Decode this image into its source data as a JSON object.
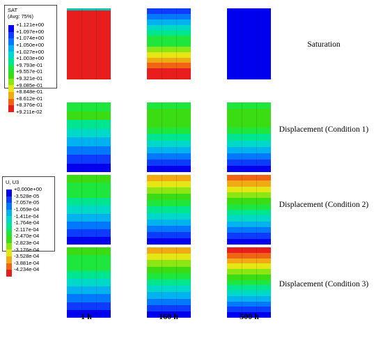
{
  "legends": {
    "sat": {
      "title_line1": "SAT",
      "title_line2": "(Avg: 75%)",
      "entries": [
        {
          "value": "+1.121e+00",
          "color": "#0000ee"
        },
        {
          "value": "+1.097e+00",
          "color": "#0d3bff"
        },
        {
          "value": "+1.074e+00",
          "color": "#0078ff"
        },
        {
          "value": "+1.050e+00",
          "color": "#00b2f0"
        },
        {
          "value": "+1.027e+00",
          "color": "#00d8c8"
        },
        {
          "value": "+1.003e+00",
          "color": "#00e690"
        },
        {
          "value": "+9.793e-01",
          "color": "#1ee63c"
        },
        {
          "value": "+9.557e-01",
          "color": "#3cdc14"
        },
        {
          "value": "+9.321e-01",
          "color": "#8ce614"
        },
        {
          "value": "+9.085e-01",
          "color": "#e6e614"
        },
        {
          "value": "+8.848e-01",
          "color": "#f0aa14"
        },
        {
          "value": "+8.612e-01",
          "color": "#f06414"
        },
        {
          "value": "+8.376e-01",
          "color": "#e81e1e"
        },
        {
          "value": "+9.211e-02",
          "color": ""
        }
      ]
    },
    "u3": {
      "title_line1": "U, U3",
      "entries": [
        {
          "value": "+0.000e+00",
          "color": "#0000ee"
        },
        {
          "value": "-3.528e-05",
          "color": "#0d3bff"
        },
        {
          "value": "-7.057e-05",
          "color": "#0078ff"
        },
        {
          "value": "-1.059e-04",
          "color": "#00b2f0"
        },
        {
          "value": "-1.411e-04",
          "color": "#00d8c8"
        },
        {
          "value": "-1.764e-04",
          "color": "#00e690"
        },
        {
          "value": "-2.117e-04",
          "color": "#1ee63c"
        },
        {
          "value": "-2.470e-04",
          "color": "#3cdc14"
        },
        {
          "value": "-2.823e-04",
          "color": "#8ce614"
        },
        {
          "value": "-3.176e-04",
          "color": "#e6e614"
        },
        {
          "value": "-3.528e-04",
          "color": "#f0aa14"
        },
        {
          "value": "-3.881e-04",
          "color": "#f06414"
        },
        {
          "value": "-4.234e-04",
          "color": "#e81e1e"
        }
      ]
    }
  },
  "row_labels": [
    "Saturation",
    "Displacement (Condition 1)",
    "Displacement (Condition 2)",
    "Displacement (Condition 3)"
  ],
  "time_labels": [
    "1 h",
    "160 h",
    "500 h"
  ],
  "columns": {
    "r0c0": [
      "#00c8b4",
      "#e81e1e",
      "#e81e1e",
      "#e81e1e",
      "#e81e1e",
      "#e81e1e",
      "#e81e1e",
      "#e81e1e",
      "#e81e1e",
      "#e81e1e",
      "#e81e1e",
      "#e81e1e",
      "#e81e1e",
      "#e81e1e",
      "#e81e1e",
      "#e81e1e",
      "#e81e1e",
      "#e81e1e",
      "#e81e1e",
      "#e81e1e",
      "#e81e1e",
      "#e81e1e",
      "#e81e1e",
      "#e81e1e",
      "#e81e1e",
      "#e81e1e",
      "#e81e1e",
      "#e81e1e",
      "#e81e1e",
      "#e81e1e"
    ],
    "r0c1": [
      "#0d3bff",
      "#0078ff",
      "#00b2f0",
      "#00d8c8",
      "#00e690",
      "#1ee63c",
      "#1ee63c",
      "#8ce614",
      "#e6e614",
      "#f0aa14",
      "#f06414",
      "#e81e1e",
      "#e81e1e"
    ],
    "r0c2": [
      "#0000ee",
      "#0000ee",
      "#0000ee",
      "#0000ee",
      "#0000ee",
      "#0000ee",
      "#0000ee",
      "#0000ee"
    ],
    "r1c0": [
      "#1ee63c",
      "#3cdc14",
      "#00e690",
      "#00d8c8",
      "#00b2f0",
      "#0078ff",
      "#0d3bff",
      "#0000ee"
    ],
    "r1c1": [
      "#1ee63c",
      "#3cdc14",
      "#3cdc14",
      "#3cdc14",
      "#1ee63c",
      "#00e690",
      "#00d8c8",
      "#00b2f0",
      "#0078ff",
      "#0d3bff",
      "#0000ee"
    ],
    "r1c2": [
      "#1ee63c",
      "#3cdc14",
      "#3cdc14",
      "#3cdc14",
      "#1ee63c",
      "#00e690",
      "#00d8c8",
      "#00b2f0",
      "#0078ff",
      "#0d3bff",
      "#0000ee"
    ],
    "r2c0": [
      "#3cdc14",
      "#1ee63c",
      "#1ee63c",
      "#00e690",
      "#00d8c8",
      "#00b2f0",
      "#0078ff",
      "#0d3bff",
      "#0000ee"
    ],
    "r2c1": [
      "#f0aa14",
      "#e6e614",
      "#8ce614",
      "#3cdc14",
      "#1ee63c",
      "#00e690",
      "#00d8c8",
      "#00b2f0",
      "#0078ff",
      "#0d3bff",
      "#0000ee"
    ],
    "r2c2": [
      "#f06414",
      "#f0aa14",
      "#e6e614",
      "#8ce614",
      "#3cdc14",
      "#1ee63c",
      "#00e690",
      "#00d8c8",
      "#00b2f0",
      "#0078ff",
      "#0d3bff",
      "#0000ee"
    ],
    "r3c0": [
      "#3cdc14",
      "#1ee63c",
      "#1ee63c",
      "#00e690",
      "#00d8c8",
      "#00b2f0",
      "#0078ff",
      "#0d3bff",
      "#0000ee"
    ],
    "r3c1": [
      "#f0aa14",
      "#e6e614",
      "#8ce614",
      "#3cdc14",
      "#1ee63c",
      "#00e690",
      "#00d8c8",
      "#00b2f0",
      "#0078ff",
      "#0d3bff",
      "#0000ee"
    ],
    "r3c2": [
      "#e81e1e",
      "#f06414",
      "#f0aa14",
      "#e6e614",
      "#8ce614",
      "#3cdc14",
      "#1ee63c",
      "#00e690",
      "#00d8c8",
      "#00b2f0",
      "#0078ff",
      "#0d3bff",
      "#0000ee"
    ]
  }
}
